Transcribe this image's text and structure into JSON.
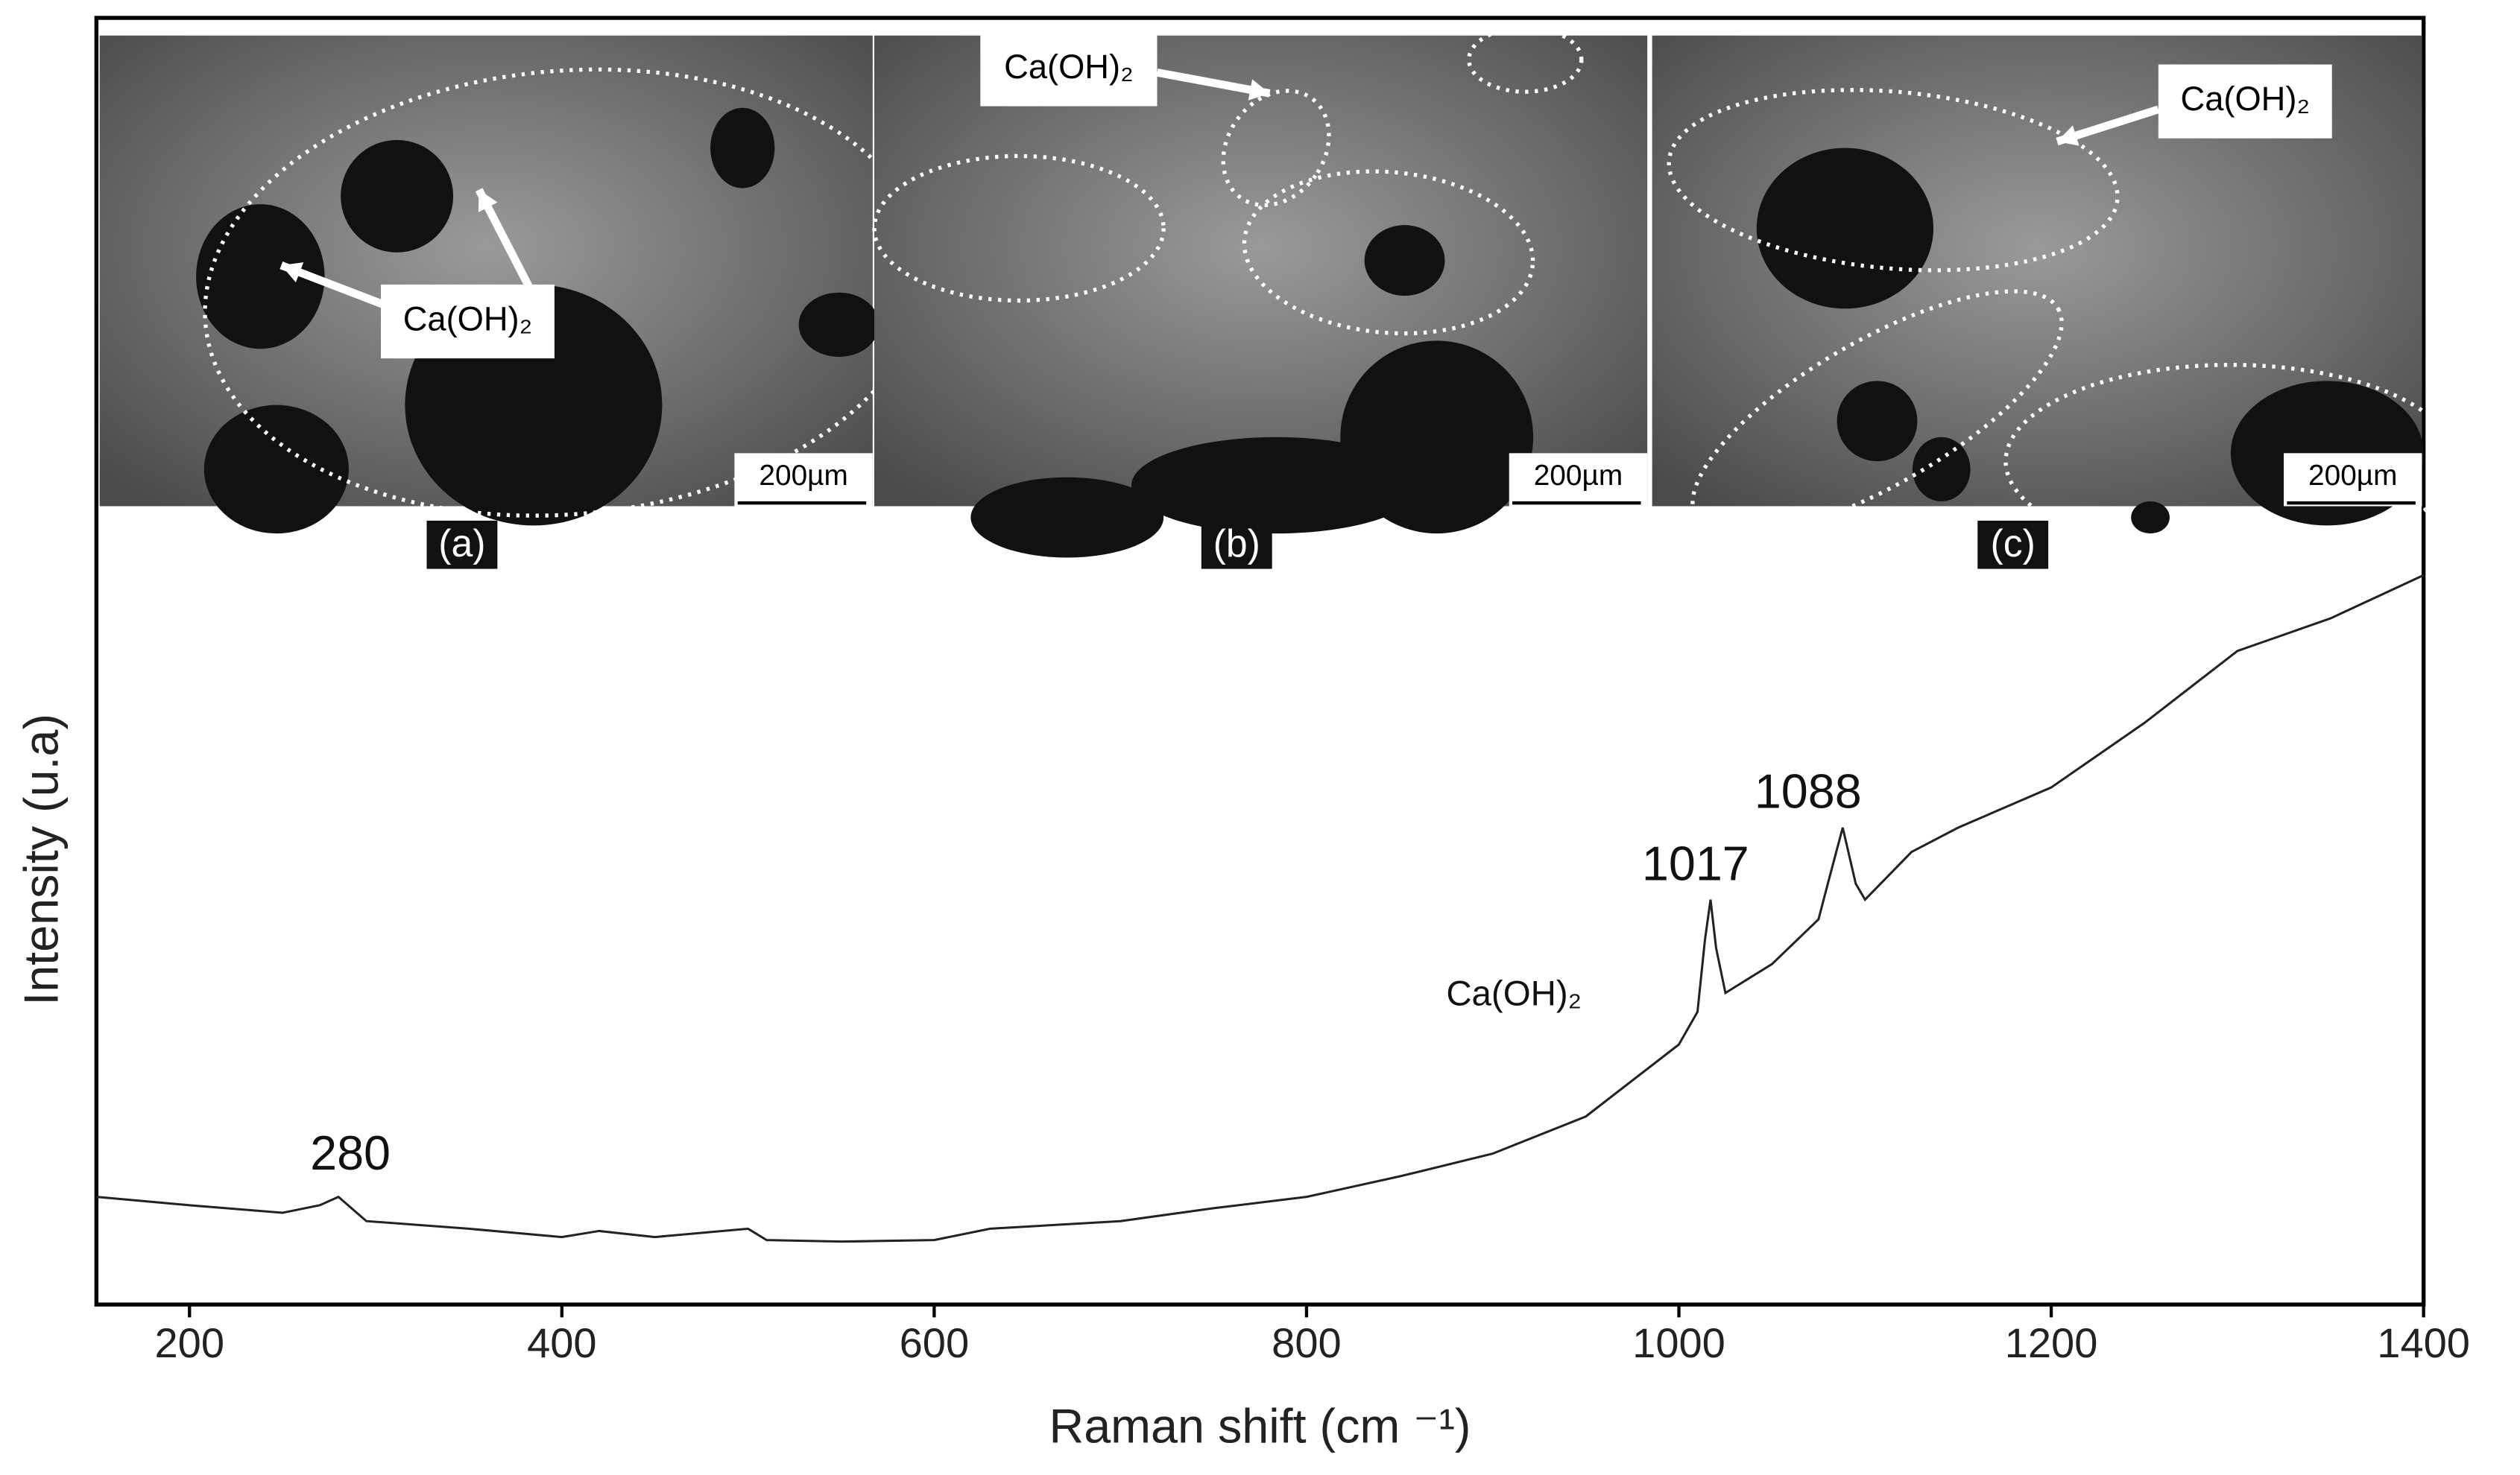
{
  "chart_data": {
    "type": "line",
    "x_label": "Raman shift (cm ⁻¹)",
    "y_label": "Intensity (u.a)",
    "x": [
      150,
      200,
      250,
      270,
      280,
      295,
      350,
      400,
      420,
      450,
      500,
      510,
      550,
      600,
      630,
      700,
      750,
      800,
      850,
      900,
      950,
      1000,
      1010,
      1014,
      1017,
      1020,
      1025,
      1050,
      1075,
      1080,
      1088,
      1095,
      1100,
      1125,
      1150,
      1200,
      1250,
      1300,
      1350,
      1400
    ],
    "values": [
      14.2,
      13.1,
      12.1,
      13.1,
      14.2,
      11.0,
      10.0,
      8.9,
      9.7,
      8.9,
      10.0,
      8.5,
      8.3,
      8.5,
      10.0,
      11.0,
      12.7,
      14.2,
      16.9,
      19.9,
      24.8,
      34.3,
      38.6,
      48.1,
      53.4,
      47.0,
      41.1,
      44.9,
      50.8,
      55.5,
      62.9,
      55.5,
      53.4,
      59.7,
      62.9,
      68.2,
      76.7,
      86.2,
      90.5,
      96.2
    ],
    "color": "#222222",
    "xlim": [
      150,
      1400
    ],
    "xticks": [
      200,
      400,
      600,
      800,
      1000,
      1200,
      1400
    ],
    "ylim": [
      0,
      100
    ],
    "annotations": [
      "280",
      "1017",
      "1088",
      "Ca(OH)₂"
    ]
  },
  "insets": [
    {
      "label": "(a)",
      "scale_bar": "200µm",
      "callout": "Ca(OH)₂"
    },
    {
      "label": "(b)",
      "scale_bar": "200µm",
      "callout": "Ca(OH)₂"
    },
    {
      "label": "(c)",
      "scale_bar": "200µm",
      "callout": "Ca(OH)₂"
    }
  ]
}
